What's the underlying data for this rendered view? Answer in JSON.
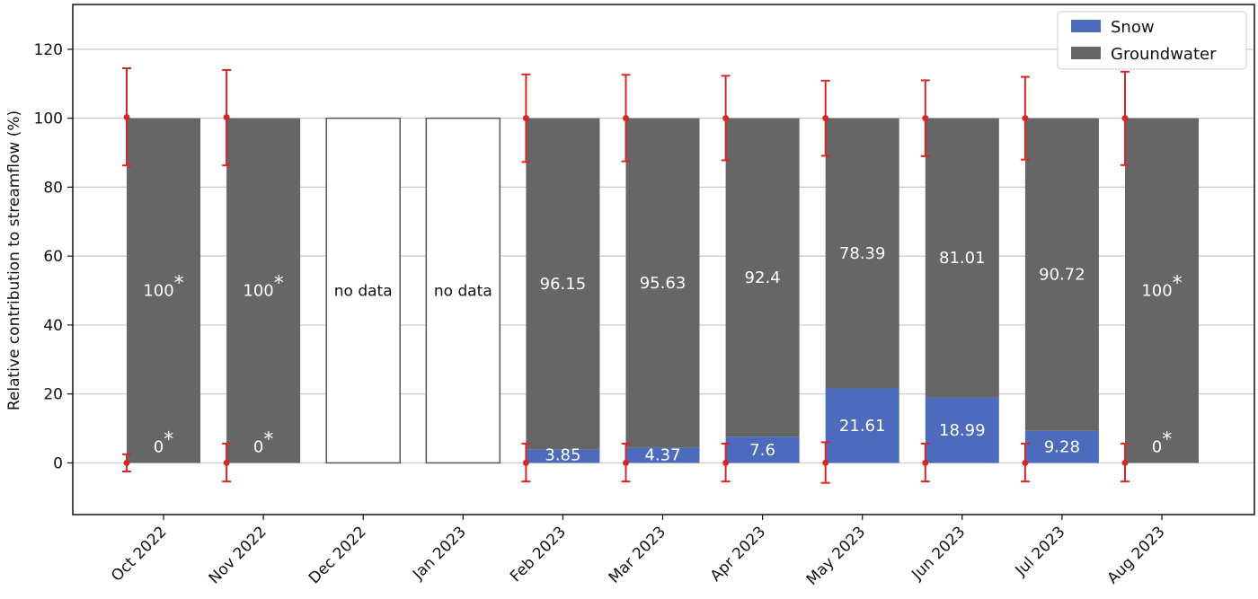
{
  "chart_data": {
    "type": "bar",
    "stacked": true,
    "ylabel": "Relative contribution to streamflow (%)",
    "xlabel": "",
    "ylim": [
      -15,
      133
    ],
    "yticks": [
      0,
      20,
      40,
      60,
      80,
      100,
      120
    ],
    "grid": "horizontal",
    "legend_position": "top-right",
    "categories": [
      "Oct 2022",
      "Nov 2022",
      "Dec 2022",
      "Jan 2023",
      "Feb 2023",
      "Mar 2023",
      "Apr 2023",
      "May 2023",
      "Jun 2023",
      "Jul 2023",
      "Aug 2023"
    ],
    "series": [
      {
        "name": "Snow",
        "color": "#4c6bbd",
        "values": [
          0,
          0,
          null,
          null,
          3.85,
          4.37,
          7.6,
          21.61,
          18.99,
          9.28,
          0
        ],
        "labels": [
          "0",
          "0",
          "",
          "",
          "3.85",
          "4.37",
          "7.6",
          "21.61",
          "18.99",
          "9.28",
          "0"
        ]
      },
      {
        "name": "Groundwater",
        "color": "#666666",
        "values": [
          100,
          100,
          null,
          null,
          96.15,
          95.63,
          92.4,
          78.39,
          81.01,
          90.72,
          100
        ],
        "labels": [
          "100",
          "100",
          "",
          "",
          "96.15",
          "95.63",
          "92.4",
          "78.39",
          "81.01",
          "90.72",
          "100"
        ]
      }
    ],
    "asterisk_marker": "*",
    "asterisk_flags": [
      true,
      true,
      false,
      false,
      false,
      false,
      false,
      false,
      false,
      false,
      true
    ],
    "no_data_flags": [
      false,
      false,
      true,
      true,
      false,
      false,
      false,
      false,
      false,
      false,
      false
    ],
    "no_data_label": "no data",
    "error_bars": {
      "color": "#d62728",
      "groundwater": [
        [
          86.3,
          100.3,
          114.5
        ],
        [
          86.3,
          100.3,
          114
        ],
        null,
        null,
        [
          87.3,
          100,
          112.7
        ],
        [
          87.5,
          100,
          112.6
        ],
        [
          87.8,
          100,
          112.3
        ],
        [
          89.1,
          100,
          110.9
        ],
        [
          89,
          100,
          111
        ],
        [
          88,
          100,
          112
        ],
        [
          86.4,
          100,
          113.5
        ]
      ],
      "snow": [
        [
          -2.5,
          0,
          2.5
        ],
        [
          -5.4,
          0,
          5.6
        ],
        null,
        null,
        [
          -5.4,
          0,
          5.6
        ],
        [
          -5.4,
          0,
          5.6
        ],
        [
          -5.4,
          0,
          5.6
        ],
        [
          -5.8,
          0,
          6
        ],
        [
          -5.4,
          0,
          5.6
        ],
        [
          -5.4,
          0,
          5.6
        ],
        [
          -5.4,
          0,
          5.6
        ]
      ]
    }
  }
}
